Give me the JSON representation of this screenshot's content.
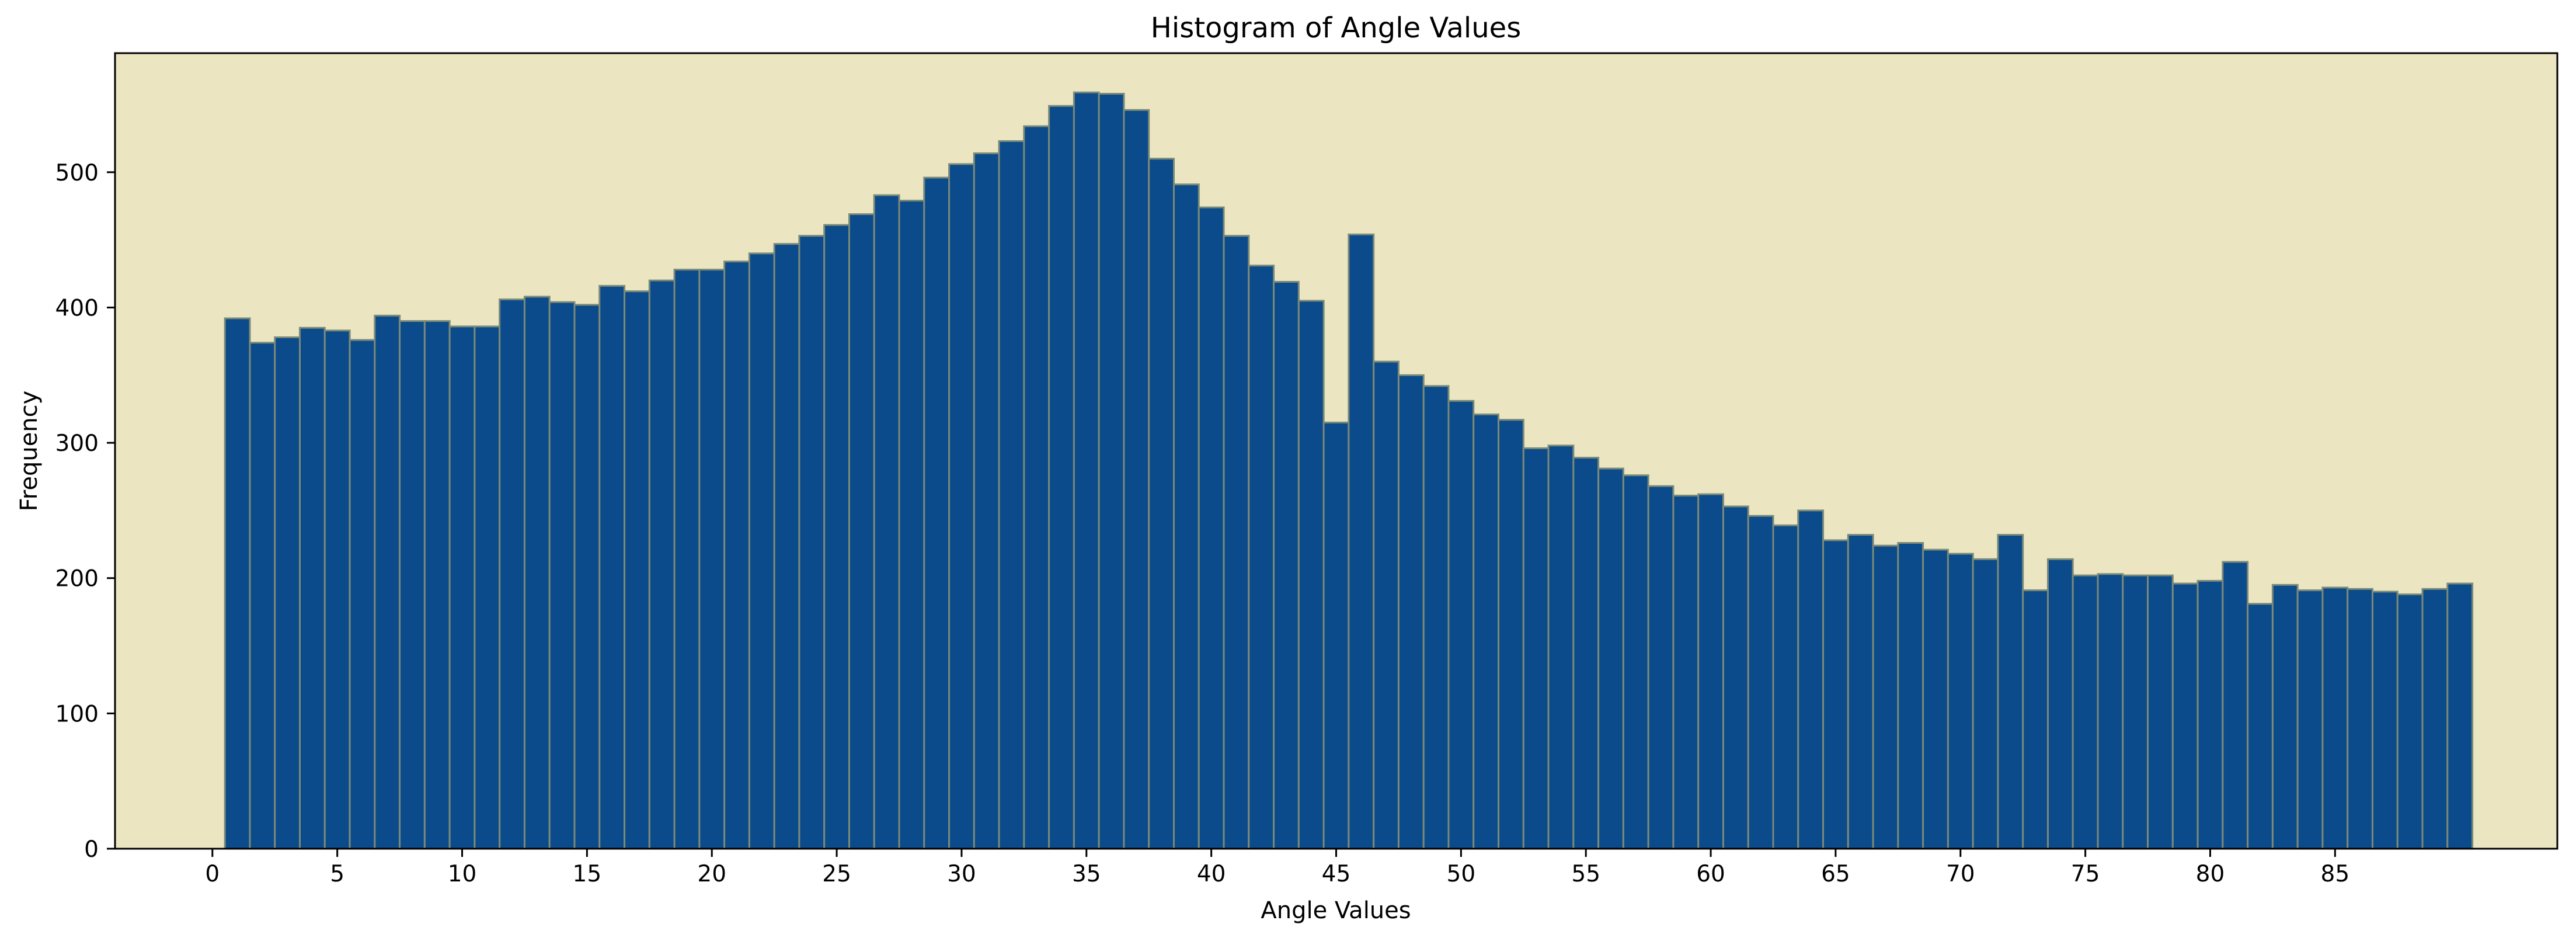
{
  "chart_data": {
    "type": "bar",
    "title": "Histogram of Angle Values",
    "xlabel": "Angle Values",
    "ylabel": "Frequency",
    "bin_start": 0.5,
    "bin_width": 1,
    "xlim": [
      -3.9,
      93.9
    ],
    "ylim": [
      0,
      588
    ],
    "x_ticks": [
      0,
      5,
      10,
      15,
      20,
      25,
      30,
      35,
      40,
      45,
      50,
      55,
      60,
      65,
      70,
      75,
      80,
      85
    ],
    "y_ticks": [
      0,
      100,
      200,
      300,
      400,
      500
    ],
    "values": [
      392,
      374,
      378,
      385,
      383,
      376,
      394,
      390,
      390,
      386,
      386,
      406,
      408,
      404,
      402,
      416,
      412,
      420,
      428,
      428,
      434,
      440,
      447,
      453,
      461,
      469,
      483,
      479,
      496,
      506,
      514,
      523,
      534,
      549,
      559,
      558,
      546,
      510,
      491,
      474,
      453,
      431,
      419,
      405,
      315,
      454,
      360,
      350,
      342,
      331,
      321,
      317,
      296,
      298,
      289,
      281,
      276,
      268,
      261,
      262,
      253,
      246,
      239,
      250,
      228,
      232,
      224,
      226,
      221,
      218,
      214,
      232,
      191,
      214,
      202,
      203,
      202,
      202,
      196,
      198,
      212,
      181,
      195,
      191,
      193,
      192,
      190,
      188,
      192,
      196
    ],
    "grid": false,
    "colors": {
      "background": "#ebe5c2",
      "bar_fill": "#0b4a8b",
      "bar_edge": "#7a8a78",
      "axes": "#000000"
    }
  }
}
